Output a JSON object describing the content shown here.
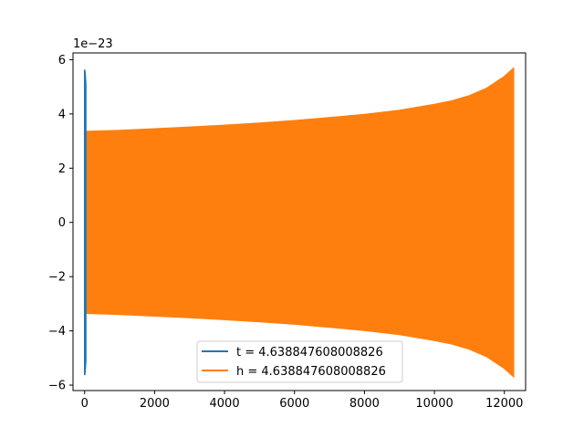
{
  "chart_data": {
    "type": "line",
    "title": "",
    "xlabel": "",
    "ylabel": "",
    "y_scale_label": "1e−23",
    "xlim": [
      -332,
      12606
    ],
    "ylim": [
      -6.2,
      6.25
    ],
    "x_ticks": [
      0,
      2000,
      4000,
      6000,
      8000,
      10000,
      12000
    ],
    "x_tick_labels": [
      "0",
      "2000",
      "4000",
      "6000",
      "8000",
      "10000",
      "12000"
    ],
    "y_ticks": [
      -6,
      -4,
      -2,
      0,
      2,
      4,
      6
    ],
    "y_tick_labels": [
      "−6",
      "−4",
      "−2",
      "0",
      "2",
      "4",
      "6"
    ],
    "grid": false,
    "legend_position": "bottom-center",
    "series": [
      {
        "name": "t = 4.638847608008826",
        "color": "#1f77b4",
        "description_x": [
          0,
          5,
          10,
          15,
          20,
          25,
          30,
          35
        ],
        "upper": [
          5.63,
          5.6,
          5.55,
          5.5,
          5.4,
          5.3,
          5.2,
          5.1
        ],
        "lower": [
          -5.63,
          -5.6,
          -5.55,
          -5.5,
          -5.4,
          -5.3,
          -5.2,
          -5.1
        ]
      },
      {
        "name": "h = 4.638847608008826",
        "color": "#ff7f0e",
        "x": [
          0,
          1000,
          2000,
          3000,
          4000,
          5000,
          6000,
          7000,
          8000,
          9000,
          10000,
          10500,
          11000,
          11500,
          12000,
          12260
        ],
        "upper": [
          3.35,
          3.39,
          3.45,
          3.51,
          3.58,
          3.66,
          3.75,
          3.86,
          3.98,
          4.13,
          4.35,
          4.48,
          4.67,
          4.95,
          5.38,
          5.68
        ],
        "lower": [
          -3.35,
          -3.39,
          -3.45,
          -3.51,
          -3.58,
          -3.66,
          -3.75,
          -3.86,
          -3.98,
          -4.13,
          -4.35,
          -4.48,
          -4.67,
          -4.95,
          -5.38,
          -5.68
        ]
      }
    ]
  }
}
